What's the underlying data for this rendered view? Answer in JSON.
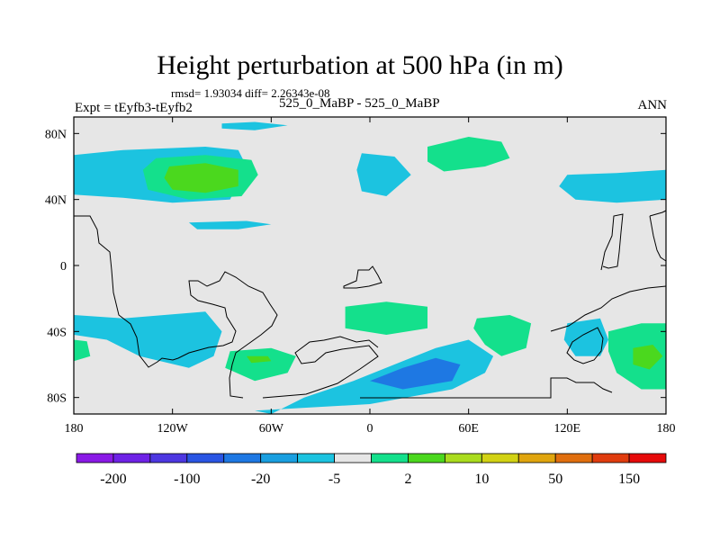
{
  "chart_data": {
    "type": "heatmap",
    "title": "Height perturbation at 500 hPa (in m)",
    "subtitle": "rmsd= 1.93034 diff= 2.26343e-08",
    "left_label": "Expt = tEyfb3-tEyfb2",
    "center_label": "525_0_MaBP - 525_0_MaBP",
    "right_label": "ANN",
    "x_range": [
      -180,
      180
    ],
    "y_range": [
      -90,
      90
    ],
    "x_ticks": [
      {
        "value": -180,
        "label": "180"
      },
      {
        "value": -120,
        "label": "120W"
      },
      {
        "value": -60,
        "label": "60W"
      },
      {
        "value": 0,
        "label": "0"
      },
      {
        "value": 60,
        "label": "60E"
      },
      {
        "value": 120,
        "label": "120E"
      },
      {
        "value": 180,
        "label": "180"
      }
    ],
    "y_ticks": [
      {
        "value": 80,
        "label": "80N"
      },
      {
        "value": 40,
        "label": "40N"
      },
      {
        "value": 0,
        "label": "0"
      },
      {
        "value": -40,
        "label": "40S"
      },
      {
        "value": -80,
        "label": "80S"
      }
    ],
    "colorbar": {
      "colors": [
        "#8a1ae6",
        "#6e22e6",
        "#4d37e1",
        "#2a55e3",
        "#1e78e3",
        "#1a9fe0",
        "#1cc3e0",
        "#e6e6e6",
        "#14e08c",
        "#4bd81e",
        "#aadc1e",
        "#d2d214",
        "#e0a50e",
        "#e06e0e",
        "#e03c0e",
        "#e60a0a"
      ],
      "labels": [
        "-200",
        "-100",
        "-20",
        "-5",
        "2",
        "10",
        "50",
        "150"
      ]
    },
    "contours": [
      {
        "level": "-5",
        "color": "#1cc3e0",
        "points": [
          [
            -150,
            70
          ],
          [
            -100,
            72
          ],
          [
            -80,
            70
          ],
          [
            -75,
            60
          ],
          [
            -85,
            40
          ],
          [
            -120,
            38
          ],
          [
            -150,
            41
          ],
          [
            -180,
            43
          ],
          [
            -180,
            67
          ]
        ]
      },
      {
        "level": "2",
        "color": "#14e08c",
        "points": [
          [
            -130,
            65
          ],
          [
            -100,
            67
          ],
          [
            -72,
            64
          ],
          [
            -68,
            55
          ],
          [
            -78,
            42
          ],
          [
            -110,
            40
          ],
          [
            -135,
            46
          ],
          [
            -138,
            58
          ]
        ]
      },
      {
        "level": "10",
        "color": "#4bd81e",
        "points": [
          [
            -122,
            60
          ],
          [
            -100,
            62
          ],
          [
            -80,
            58
          ],
          [
            -80,
            48
          ],
          [
            -100,
            44
          ],
          [
            -120,
            46
          ],
          [
            -125,
            53
          ]
        ]
      },
      {
        "level": "-5",
        "color": "#1cc3e0",
        "points": [
          [
            -90,
            86
          ],
          [
            -70,
            87
          ],
          [
            -50,
            85
          ],
          [
            -70,
            82
          ],
          [
            -90,
            83
          ]
        ]
      },
      {
        "level": "-5",
        "color": "#1cc3e0",
        "points": [
          [
            -5,
            68
          ],
          [
            15,
            66
          ],
          [
            25,
            55
          ],
          [
            10,
            42
          ],
          [
            -5,
            45
          ],
          [
            -8,
            58
          ]
        ]
      },
      {
        "level": "2",
        "color": "#14e08c",
        "points": [
          [
            35,
            72
          ],
          [
            60,
            78
          ],
          [
            80,
            75
          ],
          [
            85,
            65
          ],
          [
            70,
            60
          ],
          [
            45,
            57
          ],
          [
            35,
            63
          ]
        ]
      },
      {
        "level": "-5",
        "color": "#1cc3e0",
        "points": [
          [
            120,
            55
          ],
          [
            150,
            56
          ],
          [
            180,
            58
          ],
          [
            180,
            40
          ],
          [
            150,
            38
          ],
          [
            125,
            40
          ],
          [
            115,
            48
          ]
        ]
      },
      {
        "level": "-5",
        "color": "#1cc3e0",
        "points": [
          [
            -110,
            26
          ],
          [
            -75,
            27
          ],
          [
            -60,
            25
          ],
          [
            -80,
            22
          ],
          [
            -105,
            22
          ]
        ]
      },
      {
        "level": "-5",
        "color": "#1cc3e0",
        "points": [
          [
            -180,
            -30
          ],
          [
            -150,
            -32
          ],
          [
            -100,
            -28
          ],
          [
            -90,
            -40
          ],
          [
            -95,
            -55
          ],
          [
            -110,
            -62
          ],
          [
            -140,
            -55
          ],
          [
            -160,
            -45
          ],
          [
            -180,
            -42
          ]
        ]
      },
      {
        "level": "2",
        "color": "#14e08c",
        "points": [
          [
            -85,
            -52
          ],
          [
            -60,
            -50
          ],
          [
            -45,
            -55
          ],
          [
            -50,
            -65
          ],
          [
            -70,
            -70
          ],
          [
            -88,
            -62
          ]
        ]
      },
      {
        "level": "10",
        "color": "#4bd81e",
        "points": [
          [
            -75,
            -55
          ],
          [
            -62,
            -55
          ],
          [
            -60,
            -58
          ],
          [
            -72,
            -59
          ]
        ]
      },
      {
        "level": "2",
        "color": "#14e08c",
        "points": [
          [
            -15,
            -25
          ],
          [
            10,
            -22
          ],
          [
            35,
            -25
          ],
          [
            35,
            -38
          ],
          [
            10,
            -42
          ],
          [
            -15,
            -38
          ]
        ]
      },
      {
        "level": "2",
        "color": "#14e08c",
        "points": [
          [
            65,
            -32
          ],
          [
            85,
            -30
          ],
          [
            98,
            -35
          ],
          [
            95,
            -50
          ],
          [
            80,
            -55
          ],
          [
            70,
            -48
          ],
          [
            63,
            -38
          ]
        ]
      },
      {
        "level": "-5",
        "color": "#1cc3e0",
        "points": [
          [
            -60,
            -90
          ],
          [
            -40,
            -80
          ],
          [
            -10,
            -70
          ],
          [
            20,
            -58
          ],
          [
            40,
            -50
          ],
          [
            60,
            -45
          ],
          [
            75,
            -55
          ],
          [
            70,
            -65
          ],
          [
            50,
            -75
          ],
          [
            0,
            -84
          ],
          [
            -70,
            -88
          ]
        ]
      },
      {
        "level": "-20",
        "color": "#1e78e3",
        "points": [
          [
            0,
            -70
          ],
          [
            20,
            -62
          ],
          [
            40,
            -56
          ],
          [
            55,
            -60
          ],
          [
            50,
            -70
          ],
          [
            20,
            -75
          ]
        ]
      },
      {
        "level": "-5",
        "color": "#1cc3e0",
        "points": [
          [
            120,
            -35
          ],
          [
            140,
            -32
          ],
          [
            145,
            -45
          ],
          [
            140,
            -55
          ],
          [
            125,
            -55
          ],
          [
            118,
            -45
          ]
        ]
      },
      {
        "level": "2",
        "color": "#14e08c",
        "points": [
          [
            145,
            -40
          ],
          [
            165,
            -35
          ],
          [
            180,
            -35
          ],
          [
            180,
            -75
          ],
          [
            165,
            -75
          ],
          [
            150,
            -65
          ],
          [
            145,
            -52
          ]
        ]
      },
      {
        "level": "10",
        "color": "#4bd81e",
        "points": [
          [
            160,
            -50
          ],
          [
            172,
            -48
          ],
          [
            178,
            -55
          ],
          [
            170,
            -63
          ],
          [
            160,
            -60
          ]
        ]
      },
      {
        "level": "2",
        "color": "#14e08c",
        "points": [
          [
            -180,
            -45
          ],
          [
            -172,
            -46
          ],
          [
            -170,
            -55
          ],
          [
            -180,
            -58
          ]
        ]
      }
    ]
  }
}
